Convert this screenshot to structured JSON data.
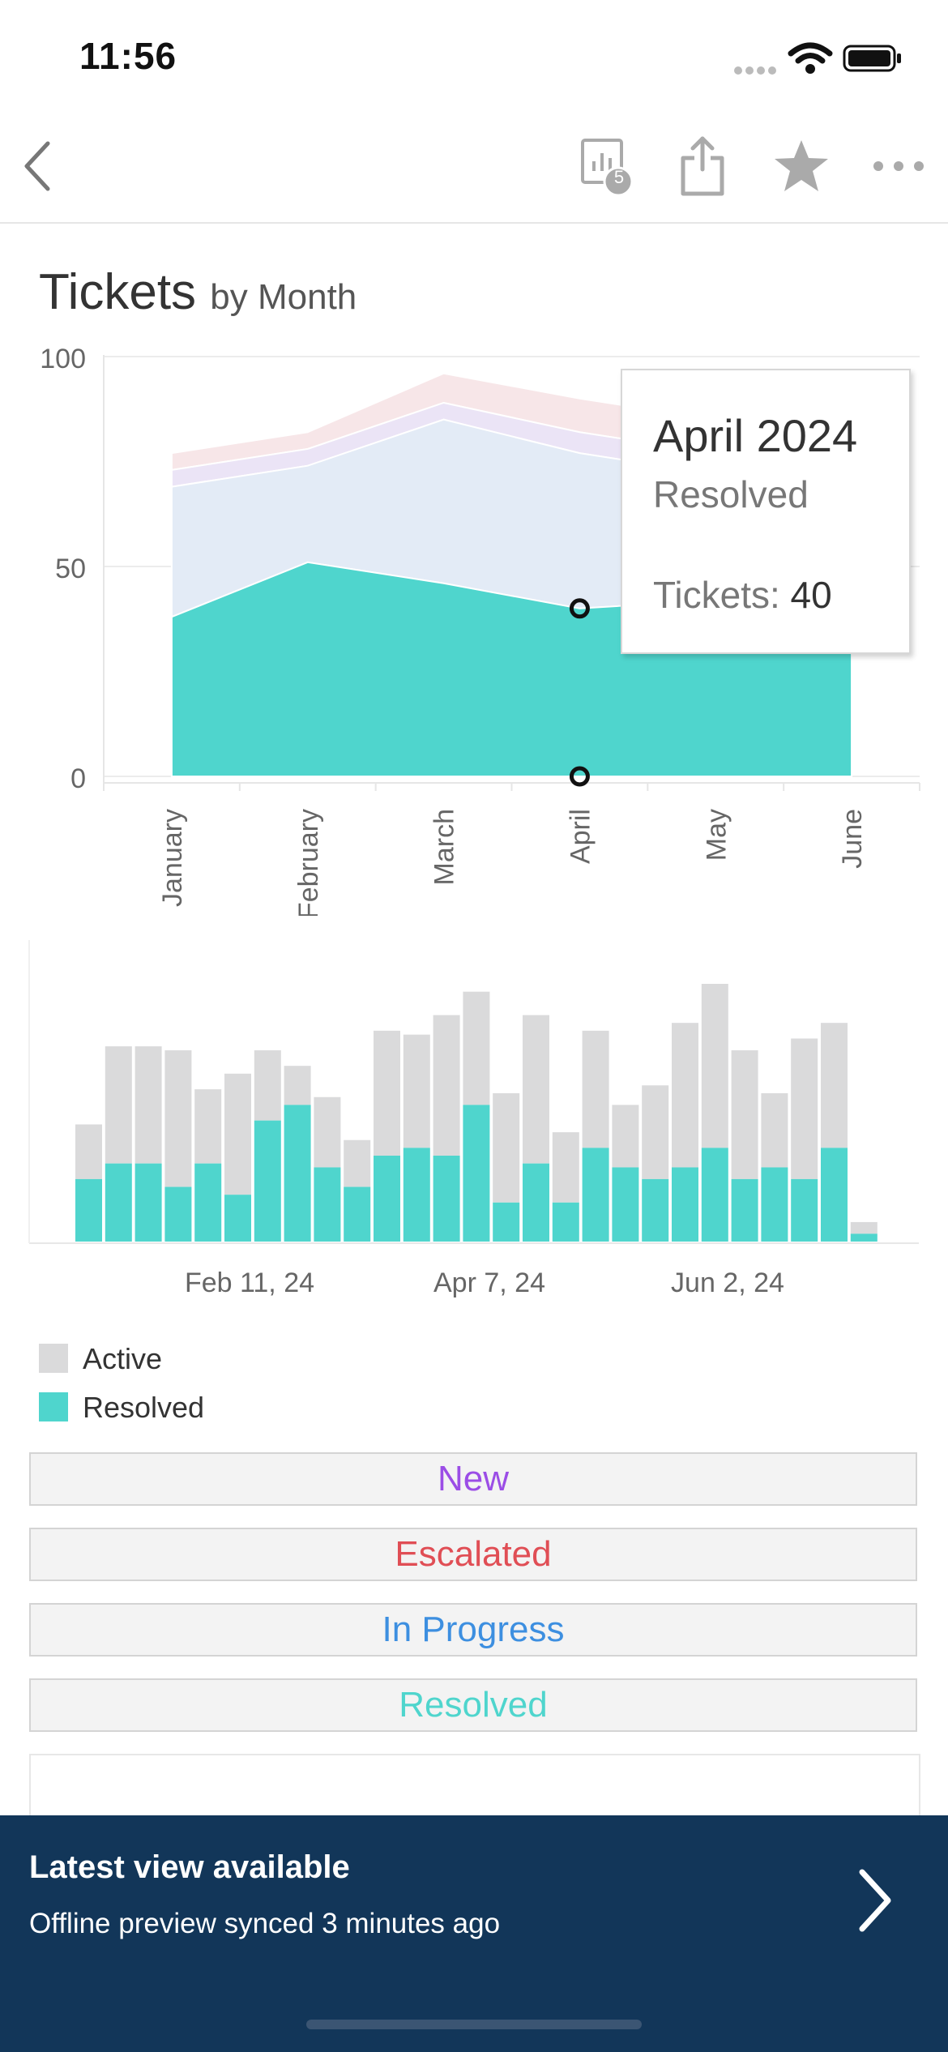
{
  "status_bar": {
    "time": "11:56"
  },
  "toolbar": {
    "back_icon": "chevron-left-icon",
    "views_icon": "chart-views-icon",
    "views_badge": "5",
    "share_icon": "share-icon",
    "favorite_icon": "star-icon",
    "more_icon": "ellipsis-icon"
  },
  "title": {
    "main": "Tickets",
    "sub": "by Month"
  },
  "colors": {
    "resolved": "#4fd5cd",
    "active": "#dadadb",
    "in_progress_area": "#e3ebf6",
    "new_area": "#ebe4f6",
    "escalated_area": "#f7e6e8",
    "new_text": "#9b4de6",
    "escalated_text": "#e04e55",
    "in_progress_text": "#3d8fe0",
    "resolved_text": "#4fd5cd",
    "banner_bg": "#123659"
  },
  "chart_data": [
    {
      "type": "area",
      "stacked": true,
      "categories": [
        "January",
        "February",
        "March",
        "April",
        "May",
        "June"
      ],
      "ylim": [
        0,
        100
      ],
      "yticks": [
        "0",
        "50",
        "100"
      ],
      "grid": true,
      "series": [
        {
          "name": "Resolved",
          "values": [
            38,
            51,
            46,
            40,
            42,
            43
          ]
        },
        {
          "name": "In Progress",
          "values": [
            31,
            23,
            39,
            37,
            30,
            32
          ]
        },
        {
          "name": "New",
          "values": [
            4,
            4,
            4,
            5,
            5,
            5
          ]
        },
        {
          "name": "Escalated",
          "values": [
            4,
            4,
            7,
            8,
            8,
            8
          ]
        }
      ],
      "tooltip": {
        "title": "April 2024",
        "series": "Resolved",
        "label": "Tickets:",
        "value": "40"
      }
    },
    {
      "type": "bar",
      "stacked": true,
      "x_tick_labels": [
        "Feb 11, 24",
        "Apr 7, 24",
        "Jun 2, 24"
      ],
      "series": [
        {
          "name": "Resolved",
          "values": [
            16,
            20,
            20,
            14,
            20,
            12,
            31,
            35,
            19,
            14,
            22,
            24,
            22,
            35,
            10,
            20,
            10,
            24,
            19,
            16,
            19,
            24,
            16,
            19,
            16,
            24,
            2
          ]
        },
        {
          "name": "Active",
          "values": [
            14,
            30,
            30,
            35,
            19,
            31,
            18,
            10,
            18,
            12,
            32,
            29,
            36,
            29,
            28,
            38,
            18,
            30,
            16,
            24,
            37,
            42,
            33,
            19,
            36,
            32,
            3
          ]
        }
      ]
    }
  ],
  "legend": [
    {
      "label": "Active",
      "color": "#dadadb"
    },
    {
      "label": "Resolved",
      "color": "#4fd5cd"
    }
  ],
  "filters": [
    {
      "label": "New"
    },
    {
      "label": "Escalated"
    },
    {
      "label": "In Progress"
    },
    {
      "label": "Resolved"
    }
  ],
  "banner": {
    "title": "Latest view available",
    "subtitle": "Offline preview synced 3 minutes ago",
    "icon": "chevron-right-icon"
  }
}
